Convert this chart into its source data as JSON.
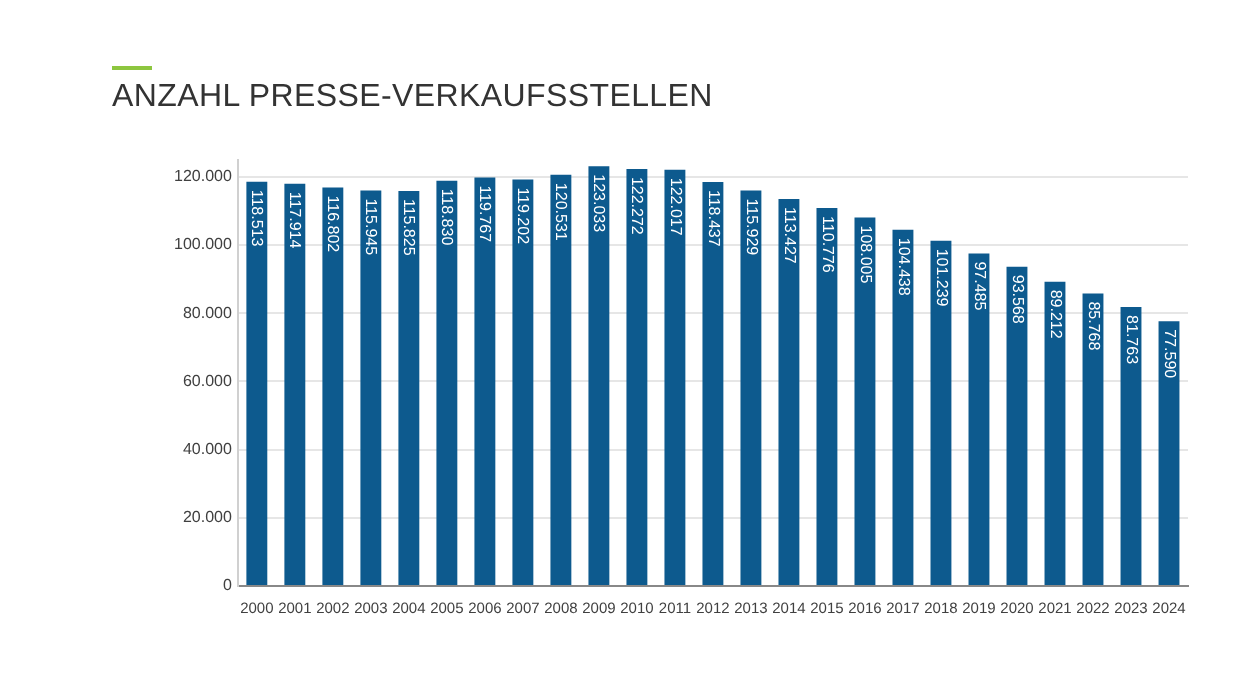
{
  "chart_data": {
    "type": "bar",
    "title": "ANZAHL PRESSE-VERKAUFSSTELLEN",
    "categories": [
      "2000",
      "2001",
      "2002",
      "2003",
      "2004",
      "2005",
      "2006",
      "2007",
      "2008",
      "2009",
      "2010",
      "2011",
      "2012",
      "2013",
      "2014",
      "2015",
      "2016",
      "2017",
      "2018",
      "2019",
      "2020",
      "2021",
      "2022",
      "2023",
      "2024"
    ],
    "values": [
      118513,
      117914,
      116802,
      115945,
      115825,
      118830,
      119767,
      119202,
      120531,
      123033,
      122272,
      122017,
      118437,
      115929,
      113427,
      110776,
      108005,
      104438,
      101239,
      97485,
      93568,
      89212,
      85768,
      81763,
      77590
    ],
    "value_labels": [
      "118.513",
      "117.914",
      "116.802",
      "115.945",
      "115.825",
      "118.830",
      "119.767",
      "119.202",
      "120.531",
      "123.033",
      "122.272",
      "122.017",
      "118.437",
      "115.929",
      "113.427",
      "110.776",
      "108.005",
      "104.438",
      "101.239",
      "97.485",
      "93.568",
      "89.212",
      "85.768",
      "81.763",
      "77.590"
    ],
    "color": "#0d5a8e",
    "ylim": [
      0,
      125000
    ],
    "yticks": [
      {
        "value": 0,
        "label": "0"
      },
      {
        "value": 20000,
        "label": "20.000"
      },
      {
        "value": 40000,
        "label": "40.000"
      },
      {
        "value": 60000,
        "label": "60.000"
      },
      {
        "value": 80000,
        "label": "80.000"
      },
      {
        "value": 100000,
        "label": "100.000"
      },
      {
        "value": 120000,
        "label": "120.000"
      }
    ],
    "grid": "y",
    "legend": false
  }
}
